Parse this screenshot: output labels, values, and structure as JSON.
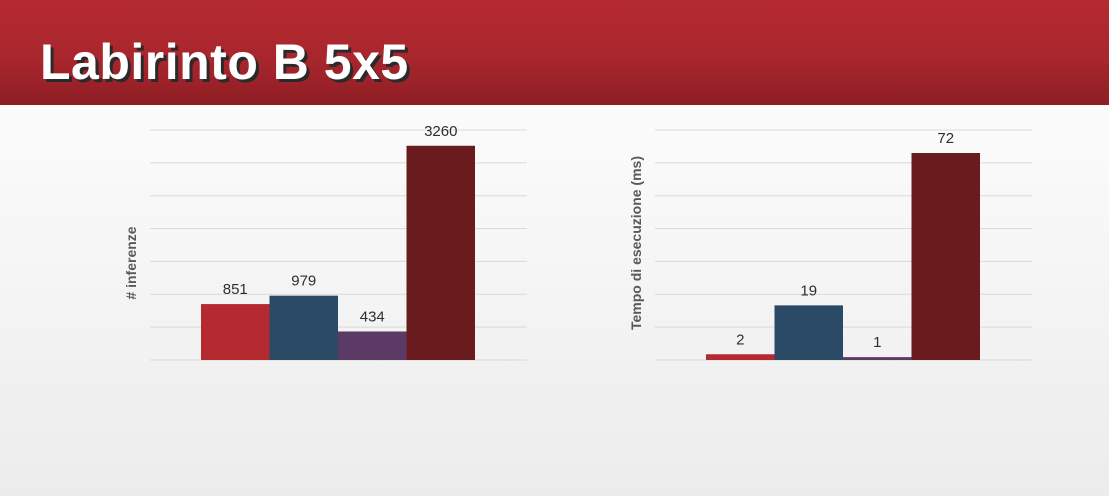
{
  "slide": {
    "title": "Labirinto B 5x5"
  },
  "chart_data": [
    {
      "type": "bar",
      "ylabel": "# inferenze",
      "xlabel": "",
      "values": [
        851,
        979,
        434,
        3260
      ],
      "colors": [
        "#b52a31",
        "#2a4a66",
        "#5c3a66",
        "#6a1b1e"
      ],
      "ylim": [
        0,
        3500
      ],
      "grid": true
    },
    {
      "type": "bar",
      "ylabel": "Tempo di esecuzione (ms)",
      "xlabel": "",
      "values": [
        2,
        19,
        1,
        72
      ],
      "colors": [
        "#b52a31",
        "#2a4a66",
        "#5c3a66",
        "#6a1b1e"
      ],
      "ylim": [
        0,
        80
      ],
      "grid": true
    }
  ]
}
